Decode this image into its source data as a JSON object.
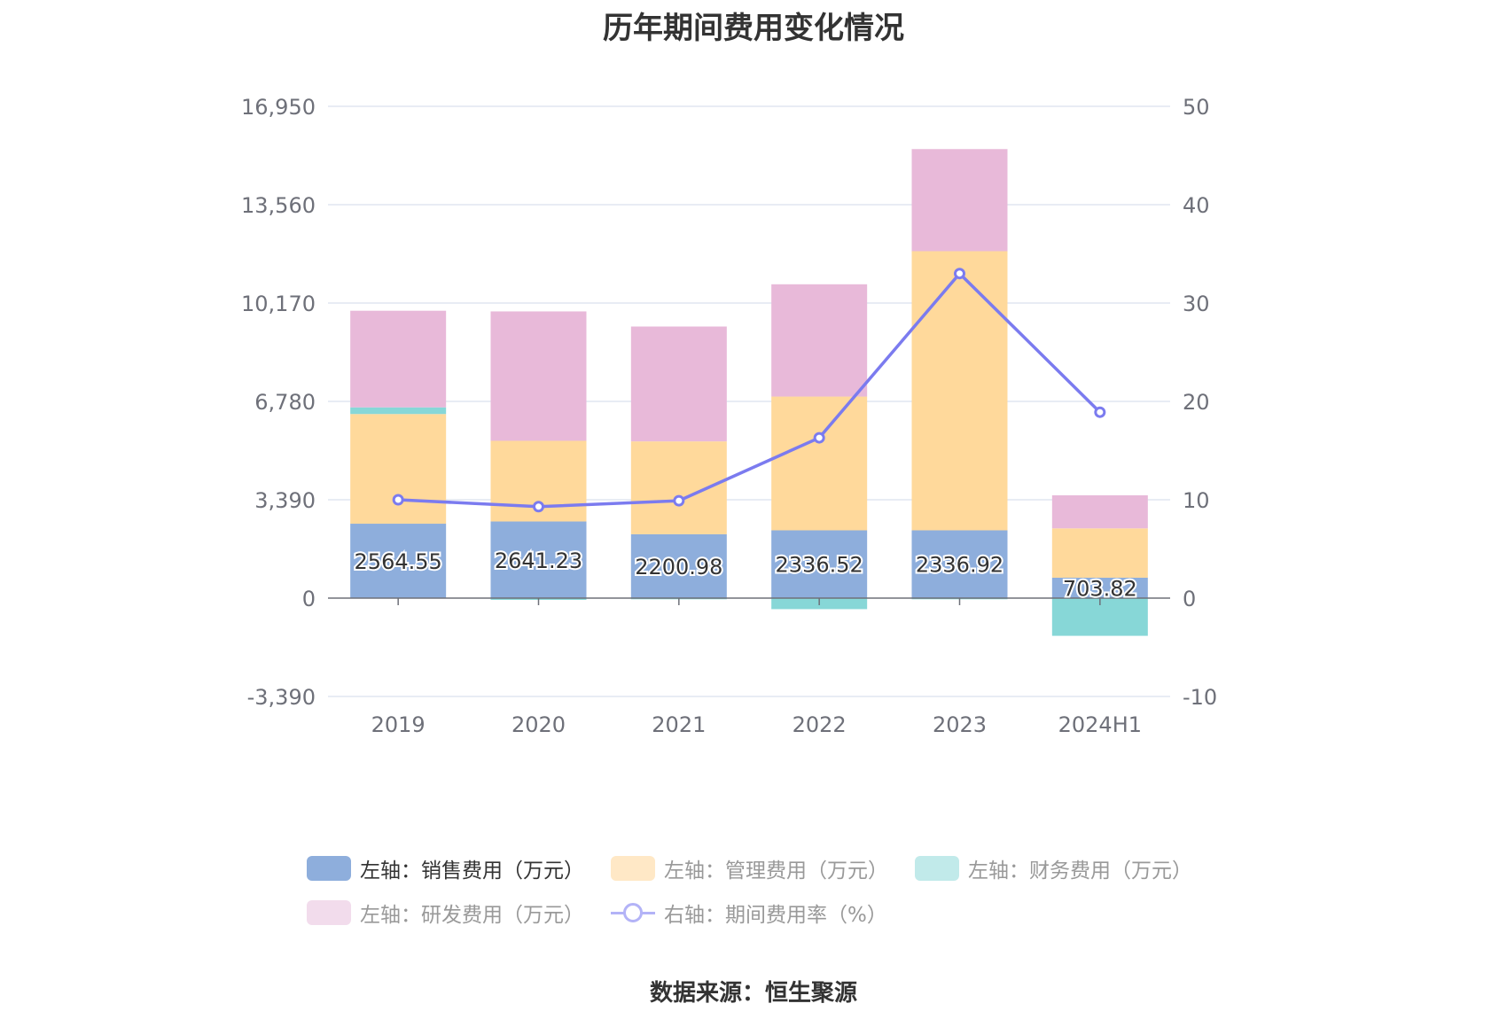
{
  "title": "历年期间费用变化情况",
  "source": "数据来源：恒生聚源",
  "legend": {
    "sales": "左轴：销售费用（万元）",
    "admin": "左轴：管理费用（万元）",
    "finance": "左轴：财务费用（万元）",
    "rd": "左轴：研发费用（万元）",
    "ratio": "右轴：期间费用率（%）"
  },
  "chart_data": {
    "type": "bar",
    "title": "历年期间费用变化情况",
    "categories": [
      "2019",
      "2020",
      "2021",
      "2022",
      "2023",
      "2024H1"
    ],
    "left_axis": {
      "ticks": [
        "16,950",
        "13,560",
        "10,170",
        "6,780",
        "3,390",
        "0",
        "-3,390"
      ],
      "ylim": [
        -3390,
        16950
      ]
    },
    "right_axis": {
      "ticks": [
        "50",
        "40",
        "30",
        "20",
        "10",
        "0",
        "-10"
      ],
      "ylim": [
        -10,
        50
      ]
    },
    "series": [
      {
        "name": "左轴：销售费用（万元）",
        "axis": "left",
        "type": "bar",
        "color": "#8eaedc",
        "values": [
          2564.55,
          2641.23,
          2200.98,
          2336.52,
          2336.92,
          703.82
        ],
        "labels": [
          "2564.55",
          "2641.23",
          "2200.98",
          "2336.52",
          "2336.92",
          "703.82"
        ]
      },
      {
        "name": "左轴：管理费用（万元）",
        "axis": "left",
        "type": "bar",
        "color": "#ffd99b",
        "values": [
          3780,
          2780,
          3200,
          4610,
          9620,
          1700
        ]
      },
      {
        "name": "左轴：财务费用（万元）",
        "axis": "left",
        "type": "bar",
        "color": "#87d7d7",
        "values": [
          230,
          -60,
          -40,
          -380,
          -40,
          -1300
        ]
      },
      {
        "name": "左轴：研发费用（万元）",
        "axis": "left",
        "type": "bar",
        "color": "#e8b9d9",
        "values": [
          3330,
          4460,
          3960,
          3870,
          3520,
          1140
        ]
      },
      {
        "name": "右轴：期间费用率（%）",
        "axis": "right",
        "type": "line",
        "color": "#7b7bef",
        "values": [
          10.0,
          9.3,
          9.9,
          16.3,
          33.0,
          18.9
        ]
      }
    ]
  }
}
